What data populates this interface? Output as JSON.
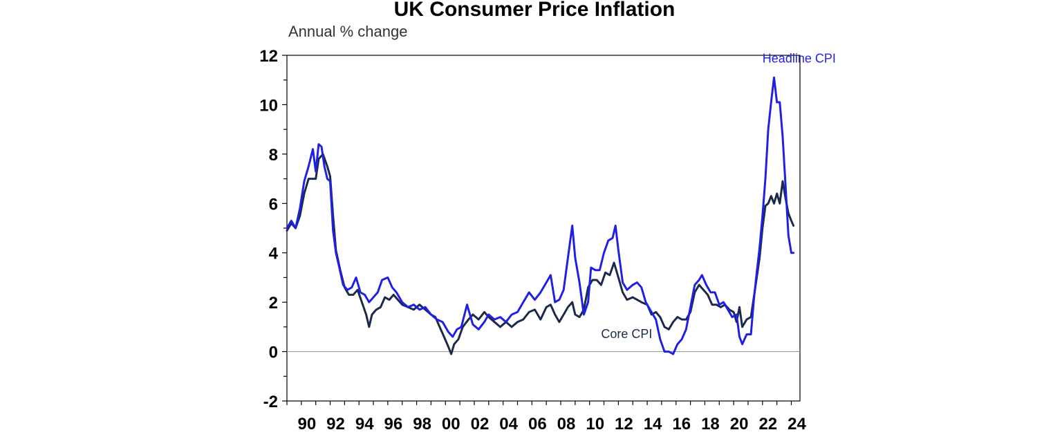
{
  "chart_data": {
    "type": "line",
    "title": "UK Consumer Price Inflation",
    "ylabel": "Annual % change",
    "xlabel": "",
    "ylim": [
      -2,
      12
    ],
    "xlim": [
      1989.0,
      2024.6
    ],
    "yticks": [
      -2,
      0,
      2,
      4,
      6,
      8,
      10,
      12
    ],
    "xticks": [
      {
        "year": 1990,
        "label": "90"
      },
      {
        "year": 1992,
        "label": "92"
      },
      {
        "year": 1994,
        "label": "94"
      },
      {
        "year": 1996,
        "label": "96"
      },
      {
        "year": 1998,
        "label": "98"
      },
      {
        "year": 2000,
        "label": "00"
      },
      {
        "year": 2002,
        "label": "02"
      },
      {
        "year": 2004,
        "label": "04"
      },
      {
        "year": 2006,
        "label": "06"
      },
      {
        "year": 2008,
        "label": "08"
      },
      {
        "year": 2010,
        "label": "10"
      },
      {
        "year": 2012,
        "label": "12"
      },
      {
        "year": 2014,
        "label": "14"
      },
      {
        "year": 2016,
        "label": "16"
      },
      {
        "year": 2018,
        "label": "18"
      },
      {
        "year": 2020,
        "label": "20"
      },
      {
        "year": 2022,
        "label": "22"
      },
      {
        "year": 2024,
        "label": "24"
      }
    ],
    "zero_line": true,
    "grid": false,
    "series": [
      {
        "name": "Headline CPI",
        "color": "#1f1fe6",
        "points": [
          [
            1989.0,
            5.0
          ],
          [
            1989.3,
            5.3
          ],
          [
            1989.6,
            5.0
          ],
          [
            1989.9,
            5.8
          ],
          [
            1990.2,
            6.9
          ],
          [
            1990.5,
            7.5
          ],
          [
            1990.8,
            8.2
          ],
          [
            1991.0,
            7.3
          ],
          [
            1991.2,
            8.4
          ],
          [
            1991.4,
            8.3
          ],
          [
            1991.6,
            7.5
          ],
          [
            1991.8,
            7.0
          ],
          [
            1992.0,
            6.9
          ],
          [
            1992.2,
            4.9
          ],
          [
            1992.4,
            4.0
          ],
          [
            1992.6,
            3.5
          ],
          [
            1992.9,
            2.7
          ],
          [
            1993.2,
            2.5
          ],
          [
            1993.5,
            2.6
          ],
          [
            1993.8,
            3.0
          ],
          [
            1994.1,
            2.4
          ],
          [
            1994.4,
            2.3
          ],
          [
            1994.7,
            2.0
          ],
          [
            1995.0,
            2.2
          ],
          [
            1995.3,
            2.4
          ],
          [
            1995.6,
            2.9
          ],
          [
            1996.0,
            3.0
          ],
          [
            1996.3,
            2.6
          ],
          [
            1996.6,
            2.4
          ],
          [
            1997.0,
            2.0
          ],
          [
            1997.4,
            1.8
          ],
          [
            1997.8,
            1.9
          ],
          [
            1998.2,
            1.7
          ],
          [
            1998.6,
            1.8
          ],
          [
            1999.0,
            1.5
          ],
          [
            1999.4,
            1.3
          ],
          [
            1999.8,
            1.2
          ],
          [
            2000.2,
            0.8
          ],
          [
            2000.5,
            0.6
          ],
          [
            2000.8,
            0.9
          ],
          [
            2001.1,
            1.0
          ],
          [
            2001.5,
            1.9
          ],
          [
            2001.9,
            1.1
          ],
          [
            2002.3,
            0.9
          ],
          [
            2002.7,
            1.2
          ],
          [
            2003.0,
            1.5
          ],
          [
            2003.4,
            1.3
          ],
          [
            2003.8,
            1.4
          ],
          [
            2004.2,
            1.2
          ],
          [
            2004.6,
            1.5
          ],
          [
            2005.0,
            1.6
          ],
          [
            2005.4,
            2.0
          ],
          [
            2005.8,
            2.4
          ],
          [
            2006.2,
            2.1
          ],
          [
            2006.6,
            2.4
          ],
          [
            2007.0,
            2.8
          ],
          [
            2007.3,
            3.1
          ],
          [
            2007.6,
            2.0
          ],
          [
            2007.9,
            2.1
          ],
          [
            2008.2,
            2.5
          ],
          [
            2008.5,
            3.8
          ],
          [
            2008.8,
            5.1
          ],
          [
            2009.0,
            3.8
          ],
          [
            2009.3,
            2.8
          ],
          [
            2009.6,
            1.5
          ],
          [
            2009.9,
            2.0
          ],
          [
            2010.1,
            3.4
          ],
          [
            2010.4,
            3.3
          ],
          [
            2010.7,
            3.3
          ],
          [
            2011.0,
            4.0
          ],
          [
            2011.3,
            4.5
          ],
          [
            2011.6,
            4.6
          ],
          [
            2011.8,
            5.1
          ],
          [
            2012.0,
            4.1
          ],
          [
            2012.3,
            2.8
          ],
          [
            2012.6,
            2.5
          ],
          [
            2013.0,
            2.7
          ],
          [
            2013.3,
            2.8
          ],
          [
            2013.6,
            2.6
          ],
          [
            2013.9,
            2.0
          ],
          [
            2014.3,
            1.6
          ],
          [
            2014.6,
            1.3
          ],
          [
            2014.9,
            0.5
          ],
          [
            2015.2,
            0.0
          ],
          [
            2015.5,
            0.0
          ],
          [
            2015.8,
            -0.1
          ],
          [
            2016.1,
            0.3
          ],
          [
            2016.4,
            0.5
          ],
          [
            2016.7,
            0.9
          ],
          [
            2017.0,
            1.8
          ],
          [
            2017.3,
            2.7
          ],
          [
            2017.6,
            2.9
          ],
          [
            2017.8,
            3.1
          ],
          [
            2018.1,
            2.7
          ],
          [
            2018.4,
            2.4
          ],
          [
            2018.7,
            2.4
          ],
          [
            2019.0,
            1.9
          ],
          [
            2019.3,
            2.0
          ],
          [
            2019.6,
            1.7
          ],
          [
            2019.9,
            1.4
          ],
          [
            2020.2,
            1.5
          ],
          [
            2020.4,
            0.6
          ],
          [
            2020.6,
            0.3
          ],
          [
            2020.9,
            0.7
          ],
          [
            2021.2,
            0.7
          ],
          [
            2021.4,
            2.1
          ],
          [
            2021.6,
            3.2
          ],
          [
            2021.8,
            4.2
          ],
          [
            2022.0,
            5.5
          ],
          [
            2022.2,
            7.0
          ],
          [
            2022.4,
            9.0
          ],
          [
            2022.6,
            10.1
          ],
          [
            2022.8,
            11.1
          ],
          [
            2023.0,
            10.1
          ],
          [
            2023.2,
            10.1
          ],
          [
            2023.4,
            8.7
          ],
          [
            2023.6,
            6.7
          ],
          [
            2023.8,
            4.7
          ],
          [
            2024.0,
            4.0
          ],
          [
            2024.15,
            4.0
          ]
        ]
      },
      {
        "name": "Core CPI",
        "color": "#1b2a4a",
        "points": [
          [
            1989.0,
            4.9
          ],
          [
            1989.3,
            5.2
          ],
          [
            1989.6,
            5.0
          ],
          [
            1989.9,
            5.5
          ],
          [
            1990.2,
            6.4
          ],
          [
            1990.5,
            7.0
          ],
          [
            1990.8,
            7.0
          ],
          [
            1991.0,
            7.0
          ],
          [
            1991.2,
            7.8
          ],
          [
            1991.5,
            8.0
          ],
          [
            1991.8,
            7.5
          ],
          [
            1992.0,
            7.1
          ],
          [
            1992.2,
            5.5
          ],
          [
            1992.4,
            4.1
          ],
          [
            1992.7,
            3.3
          ],
          [
            1993.0,
            2.6
          ],
          [
            1993.3,
            2.3
          ],
          [
            1993.6,
            2.3
          ],
          [
            1993.9,
            2.5
          ],
          [
            1994.2,
            2.0
          ],
          [
            1994.5,
            1.5
          ],
          [
            1994.7,
            1.0
          ],
          [
            1994.9,
            1.5
          ],
          [
            1995.2,
            1.7
          ],
          [
            1995.5,
            1.8
          ],
          [
            1995.8,
            2.2
          ],
          [
            1996.1,
            2.1
          ],
          [
            1996.4,
            2.3
          ],
          [
            1996.7,
            2.1
          ],
          [
            1997.0,
            1.9
          ],
          [
            1997.4,
            1.8
          ],
          [
            1997.8,
            1.7
          ],
          [
            1998.2,
            1.9
          ],
          [
            1998.6,
            1.7
          ],
          [
            1999.0,
            1.5
          ],
          [
            1999.3,
            1.4
          ],
          [
            1999.6,
            1.0
          ],
          [
            1999.9,
            0.6
          ],
          [
            2000.2,
            0.2
          ],
          [
            2000.4,
            -0.1
          ],
          [
            2000.6,
            0.3
          ],
          [
            2000.9,
            0.5
          ],
          [
            2001.2,
            1.0
          ],
          [
            2001.6,
            1.3
          ],
          [
            2001.9,
            1.5
          ],
          [
            2002.3,
            1.3
          ],
          [
            2002.7,
            1.6
          ],
          [
            2003.0,
            1.4
          ],
          [
            2003.4,
            1.2
          ],
          [
            2003.8,
            1.0
          ],
          [
            2004.2,
            1.2
          ],
          [
            2004.6,
            1.0
          ],
          [
            2005.0,
            1.2
          ],
          [
            2005.4,
            1.3
          ],
          [
            2005.8,
            1.6
          ],
          [
            2006.2,
            1.7
          ],
          [
            2006.6,
            1.3
          ],
          [
            2007.0,
            1.8
          ],
          [
            2007.3,
            1.9
          ],
          [
            2007.6,
            1.5
          ],
          [
            2007.9,
            1.2
          ],
          [
            2008.2,
            1.5
          ],
          [
            2008.5,
            1.8
          ],
          [
            2008.8,
            2.0
          ],
          [
            2009.0,
            1.5
          ],
          [
            2009.3,
            1.4
          ],
          [
            2009.6,
            1.7
          ],
          [
            2009.9,
            2.6
          ],
          [
            2010.2,
            2.9
          ],
          [
            2010.5,
            2.9
          ],
          [
            2010.8,
            2.7
          ],
          [
            2011.1,
            3.2
          ],
          [
            2011.4,
            3.1
          ],
          [
            2011.7,
            3.6
          ],
          [
            2012.0,
            3.0
          ],
          [
            2012.3,
            2.4
          ],
          [
            2012.6,
            2.1
          ],
          [
            2013.0,
            2.2
          ],
          [
            2013.3,
            2.1
          ],
          [
            2013.6,
            2.0
          ],
          [
            2014.0,
            1.9
          ],
          [
            2014.3,
            1.5
          ],
          [
            2014.6,
            1.6
          ],
          [
            2014.9,
            1.4
          ],
          [
            2015.2,
            1.0
          ],
          [
            2015.5,
            0.9
          ],
          [
            2015.8,
            1.2
          ],
          [
            2016.1,
            1.4
          ],
          [
            2016.4,
            1.3
          ],
          [
            2016.7,
            1.3
          ],
          [
            2017.0,
            1.6
          ],
          [
            2017.3,
            2.4
          ],
          [
            2017.6,
            2.7
          ],
          [
            2017.9,
            2.5
          ],
          [
            2018.2,
            2.3
          ],
          [
            2018.5,
            1.9
          ],
          [
            2018.8,
            1.9
          ],
          [
            2019.1,
            1.8
          ],
          [
            2019.4,
            1.9
          ],
          [
            2019.7,
            1.7
          ],
          [
            2020.0,
            1.6
          ],
          [
            2020.2,
            1.2
          ],
          [
            2020.4,
            1.8
          ],
          [
            2020.6,
            1.0
          ],
          [
            2020.9,
            1.3
          ],
          [
            2021.2,
            1.4
          ],
          [
            2021.4,
            2.2
          ],
          [
            2021.6,
            3.0
          ],
          [
            2021.8,
            3.8
          ],
          [
            2022.0,
            5.0
          ],
          [
            2022.2,
            5.9
          ],
          [
            2022.4,
            6.0
          ],
          [
            2022.6,
            6.3
          ],
          [
            2022.8,
            6.0
          ],
          [
            2023.0,
            6.4
          ],
          [
            2023.2,
            6.0
          ],
          [
            2023.4,
            6.9
          ],
          [
            2023.6,
            6.2
          ],
          [
            2023.8,
            5.6
          ],
          [
            2024.0,
            5.3
          ],
          [
            2024.15,
            5.1
          ]
        ]
      }
    ],
    "annotations": [
      {
        "text": "Headline CPI",
        "series": "Headline CPI",
        "x": 2022.0,
        "y": 11.7
      },
      {
        "text": "Core CPI",
        "series": "Core CPI",
        "x": 2010.8,
        "y": 0.55
      }
    ]
  }
}
